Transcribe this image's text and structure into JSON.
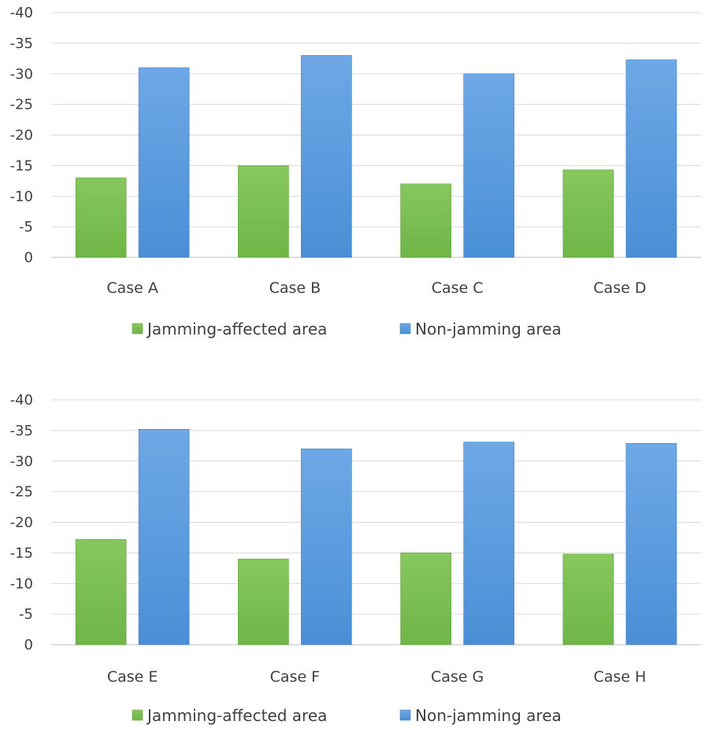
{
  "chart_data": [
    {
      "type": "bar",
      "title": "",
      "xlabel": "",
      "ylabel": "",
      "categories": [
        "Case A",
        "Case B",
        "Case C",
        "Case D"
      ],
      "series": [
        {
          "name": "Jamming-affected area",
          "values": [
            -13,
            -15,
            -12,
            -14.3
          ]
        },
        {
          "name": "Non-jamming area",
          "values": [
            -31,
            -33,
            -30,
            -32.3
          ]
        }
      ],
      "ylim": [
        0,
        -40
      ],
      "yticks": [
        0,
        -5,
        -10,
        -15,
        -20,
        -25,
        -30,
        -35,
        -40
      ],
      "ytick_labels": [
        "0",
        "-5",
        "-10",
        "-15",
        "-20",
        "-25",
        "-30",
        "-35",
        "-40"
      ],
      "grid": true,
      "legend": "bottom"
    },
    {
      "type": "bar",
      "title": "",
      "xlabel": "",
      "ylabel": "",
      "categories": [
        "Case E",
        "Case F",
        "Case G",
        "Case H"
      ],
      "series": [
        {
          "name": "Jamming-affected area",
          "values": [
            -17.2,
            -14,
            -15,
            -14.8
          ]
        },
        {
          "name": "Non-jamming area",
          "values": [
            -35.2,
            -32,
            -33.1,
            -32.9
          ]
        }
      ],
      "ylim": [
        0,
        -40
      ],
      "yticks": [
        0,
        -5,
        -10,
        -15,
        -20,
        -25,
        -30,
        -35,
        -40
      ],
      "ytick_labels": [
        "0",
        "-5",
        "-10",
        "-15",
        "-20",
        "-25",
        "-30",
        "-35",
        "-40"
      ],
      "grid": true,
      "legend": "bottom"
    }
  ],
  "colors": {
    "jamming": "#70b548",
    "jamming_light": "#86c75e",
    "nonjamming": "#4a8fd6",
    "nonjamming_light": "#6ea8e6",
    "grid": "#d9d9d9",
    "axis": "#bfbfbf"
  }
}
